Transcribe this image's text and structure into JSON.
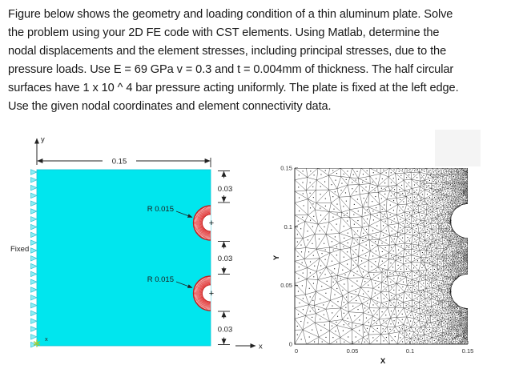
{
  "problem": {
    "lines": [
      "Figure below shows the geometry and loading condition of a thin aluminum plate. Solve",
      "the problem using your 2D FE code with CST elements. Using Matlab, determine the",
      "nodal displacements and the element stresses, including principal stresses, due to the",
      "pressure loads. Use E = 69 GPa v = 0.3 and t = 0.004mm of thickness. The half circular",
      "surfaces have 1 x 10 ^ 4  bar pressure acting uniformly. The plate is fixed at the left edge.",
      "Use the given nodal coordinates and element connectivity data."
    ]
  },
  "geometry_figure": {
    "fixed_label": "Fixed",
    "width_dim_label": "0.15",
    "gap_dim_labels": [
      "0.03",
      "0.03",
      "0.03"
    ],
    "radius_labels": [
      "R 0.015",
      "R 0.015"
    ],
    "x_axis_label": "x",
    "y_axis_label": "y",
    "origin_node_label": "x",
    "notch_center_marker": "+",
    "colors": {
      "plate": "#00e6ee",
      "plate_edge": "#17c3d6",
      "pressure": "#e03030",
      "pressure_dark": "#c02020",
      "support_fill": "#8deef5",
      "support_edge": "#2cc4d4",
      "origin_marker": "#9ccb3b"
    }
  },
  "chart_data": {
    "type": "fe-mesh-triangulation",
    "element_type": "CST triangle",
    "xlabel": "X",
    "ylabel": "Y",
    "xlim": [
      0,
      0.15
    ],
    "ylim": [
      0,
      0.15
    ],
    "xticks": [
      "0",
      "0.05",
      "0.1",
      "0.15"
    ],
    "yticks": [
      "0",
      "0.05",
      "0.1",
      "0.15"
    ],
    "domain": {
      "shape": "square-plate-with-right-edge-semicircular-notches",
      "width": 0.15,
      "height": 0.15,
      "notches": [
        {
          "cx": 0.15,
          "cy": 0.105,
          "r": 0.015
        },
        {
          "cx": 0.15,
          "cy": 0.045,
          "r": 0.015
        }
      ]
    },
    "mesh": {
      "coarse_spacing": 0.0106,
      "fine_spacing": 0.00235,
      "grading_exponent": 1.7,
      "seed": 11,
      "edge_color": "#2e2e2e",
      "node_dot_color": "#000000",
      "boundary_color": "#1a1a1a"
    }
  }
}
